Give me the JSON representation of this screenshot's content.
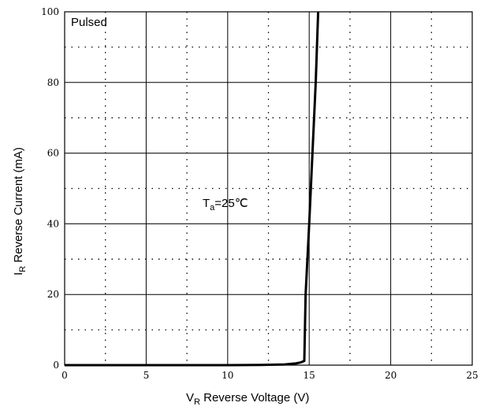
{
  "chart_data": {
    "type": "line",
    "title": "",
    "xlabel": {
      "main": "V",
      "sub": "R",
      "rest": "  Reverse Voltage  (V)"
    },
    "ylabel": {
      "main": "I",
      "sub": "R",
      "rest": "  Reverse Current (mA)"
    },
    "xlim": [
      0,
      25
    ],
    "ylim": [
      0,
      100
    ],
    "xticks": [
      0,
      5,
      10,
      15,
      20,
      25
    ],
    "yticks": [
      0,
      20,
      40,
      60,
      80,
      100
    ],
    "x_minor": [
      2.5,
      7.5,
      12.5,
      17.5,
      22.5
    ],
    "y_minor": [
      10,
      30,
      50,
      70,
      90
    ],
    "grid": true,
    "annotations": {
      "pulsed": "Pulsed",
      "temp_main": "T",
      "temp_sub": "a",
      "temp_rest": "=25℃"
    },
    "series": [
      {
        "x": [
          0,
          5,
          10,
          12,
          13.5,
          14.2,
          14.5,
          14.7,
          14.78,
          15.0,
          15.2,
          15.4,
          15.55
        ],
        "y": [
          0,
          0,
          0,
          0.05,
          0.2,
          0.5,
          0.8,
          1.2,
          20,
          40,
          60,
          80,
          100
        ]
      }
    ]
  }
}
